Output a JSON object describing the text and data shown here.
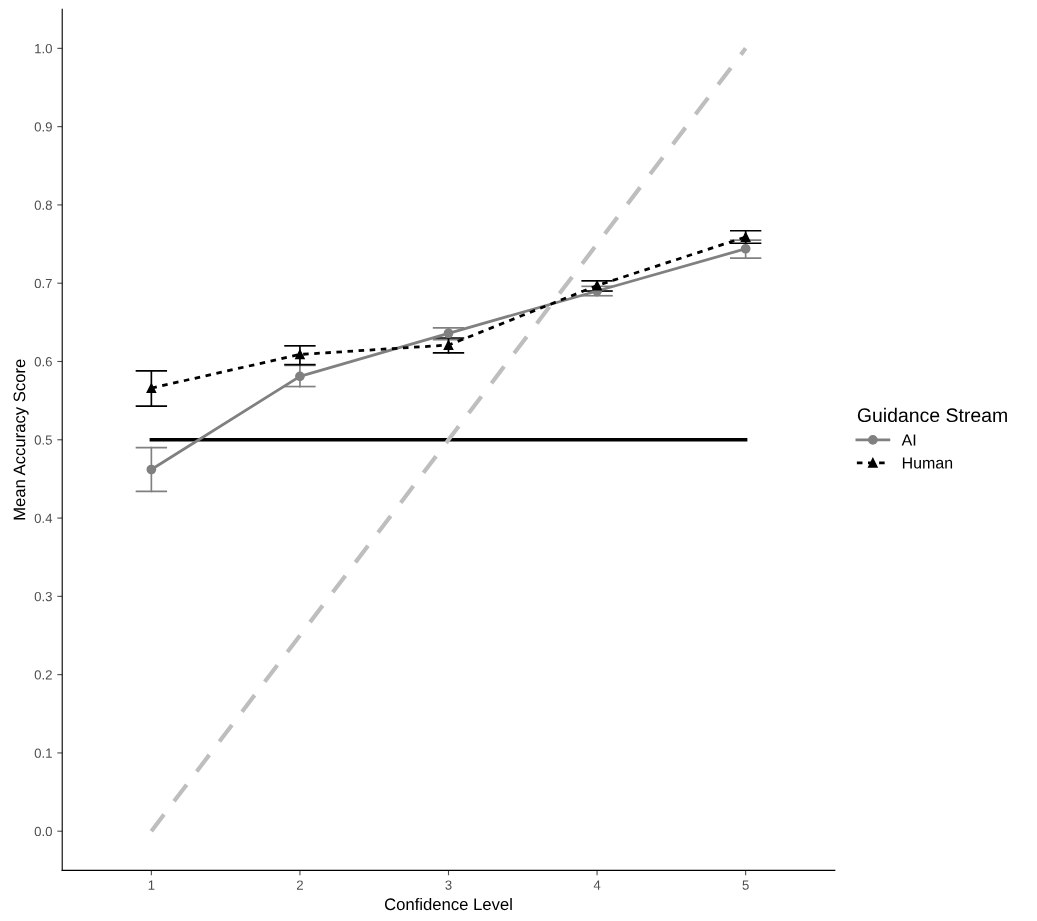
{
  "chart_data": {
    "type": "line",
    "xlabel": "Confidence Level",
    "ylabel": "Mean Accuracy Score",
    "legend_title": "Guidance Stream",
    "legend": "right",
    "x": [
      1,
      2,
      3,
      4,
      5
    ],
    "series": [
      {
        "name": "AI",
        "color": "#808080",
        "marker": "circle",
        "line_style": "solid",
        "values": [
          0.462,
          0.581,
          0.636,
          0.69,
          0.744
        ],
        "errors": [
          [
            0.434,
            0.49
          ],
          [
            0.568,
            0.595
          ],
          [
            0.628,
            0.643
          ],
          [
            0.684,
            0.696
          ],
          [
            0.732,
            0.755
          ]
        ]
      },
      {
        "name": "Human",
        "color": "#000000",
        "marker": "triangle",
        "line_style": "dotted",
        "values": [
          0.566,
          0.609,
          0.621,
          0.697,
          0.759
        ],
        "errors": [
          [
            0.543,
            0.588
          ],
          [
            0.596,
            0.62
          ],
          [
            0.611,
            0.63
          ],
          [
            0.69,
            0.703
          ],
          [
            0.751,
            0.767
          ]
        ]
      },
      {
        "color": "#000000",
        "marker": "none",
        "line_style": "solid",
        "values": [
          0.5,
          0.5,
          0.5,
          0.5,
          0.5
        ]
      },
      {
        "color": "#bebebe",
        "marker": "none",
        "line_style": "dashed",
        "values": [
          0,
          0.25,
          0.5,
          0.75,
          1
        ]
      }
    ],
    "xlim": [
      0.4,
      5.6
    ],
    "xticks": [
      1,
      2,
      3,
      4,
      5
    ],
    "ylim": [
      -0.05,
      1.05
    ],
    "yticks": [
      {
        "value": 0,
        "label": "0.0"
      },
      {
        "value": 0.1,
        "label": "0.1"
      },
      {
        "value": 0.2,
        "label": "0.2"
      },
      {
        "value": 0.3,
        "label": "0.3"
      },
      {
        "value": 0.4,
        "label": "0.4"
      },
      {
        "value": 0.5,
        "label": "0.5"
      },
      {
        "value": 0.6,
        "label": "0.6"
      },
      {
        "value": 0.7,
        "label": "0.7"
      },
      {
        "value": 0.8,
        "label": "0.8"
      },
      {
        "value": 0.9,
        "label": "0.9"
      },
      {
        "value": 1,
        "label": "1.0"
      }
    ],
    "grid": false
  }
}
